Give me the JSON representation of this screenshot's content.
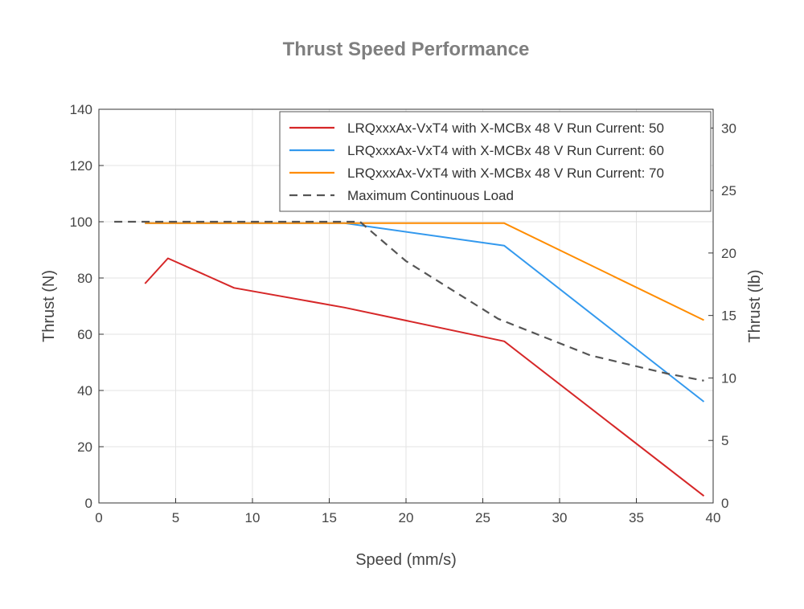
{
  "chart_data": {
    "type": "line",
    "title": "Thrust Speed Performance",
    "xlabel": "Speed (mm/s)",
    "ylabel": "Thrust (N)",
    "y2label": "Thrust (lb)",
    "xlim": [
      0,
      40
    ],
    "ylim": [
      0,
      140
    ],
    "y2lim": [
      0,
      31.5
    ],
    "xticks": [
      0,
      5,
      10,
      15,
      20,
      25,
      30,
      35,
      40
    ],
    "yticks": [
      0,
      20,
      40,
      60,
      80,
      100,
      120,
      140
    ],
    "y2ticks": [
      0,
      5,
      10,
      15,
      20,
      25,
      30
    ],
    "grid": true,
    "legend_position": "top-right",
    "series": [
      {
        "name": "LRQxxxAx-VxT4 with X-MCBx 48 V Run Current: 50",
        "color": "#d62728",
        "dash": "solid",
        "x": [
          3.0,
          4.5,
          8.8,
          16.0,
          26.4,
          39.4
        ],
        "y": [
          78.0,
          87.0,
          76.5,
          69.5,
          57.5,
          2.5
        ]
      },
      {
        "name": "LRQxxxAx-VxT4 with X-MCBx 48 V Run Current: 60",
        "color": "#3399ee",
        "dash": "solid",
        "x": [
          3.0,
          16.0,
          26.4,
          39.4
        ],
        "y": [
          99.5,
          99.5,
          91.5,
          36.0
        ]
      },
      {
        "name": "LRQxxxAx-VxT4 with X-MCBx 48 V Run Current: 70",
        "color": "#ff8c00",
        "dash": "solid",
        "x": [
          3.0,
          16.0,
          26.4,
          39.4
        ],
        "y": [
          99.5,
          99.5,
          99.5,
          65.0
        ]
      },
      {
        "name": "Maximum Continuous Load",
        "color": "#555555",
        "dash": "dashed",
        "x": [
          1.0,
          17.0,
          20.0,
          26.0,
          32.0,
          37.0,
          39.4
        ],
        "y": [
          100.0,
          100.0,
          86.0,
          65.5,
          52.5,
          46.0,
          43.5
        ]
      }
    ]
  }
}
